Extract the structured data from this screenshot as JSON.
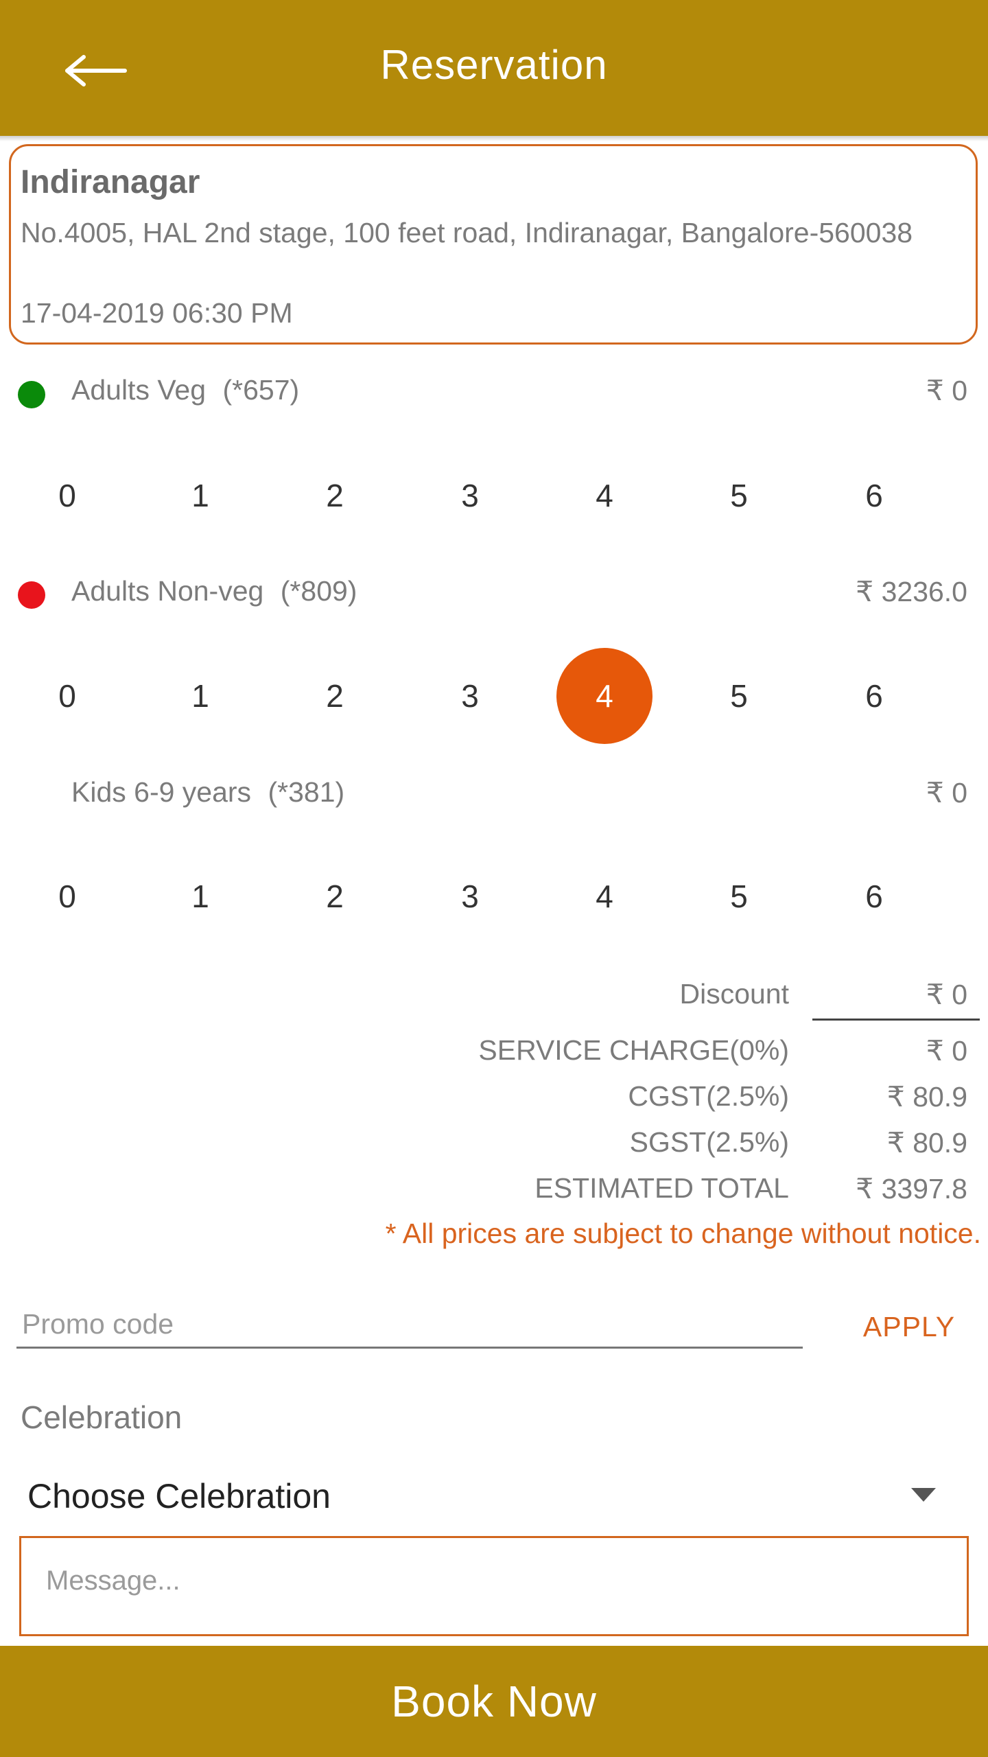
{
  "header": {
    "title": "Reservation",
    "back_icon": "arrow-left-icon"
  },
  "branch": {
    "name": "Indiranagar",
    "address": "No.4005, HAL 2nd stage, 100 feet road, Indiranagar, Bangalore-560038",
    "datetime": "17-04-2019 06:30 PM"
  },
  "groups": [
    {
      "label": "Adults Veg",
      "code": "(*657)",
      "price": "₹ 0",
      "dot_color": "#0a8a0a",
      "options": [
        "0",
        "1",
        "2",
        "3",
        "4",
        "5",
        "6"
      ],
      "selected": "0"
    },
    {
      "label": "Adults Non-veg",
      "code": "(*809)",
      "price": "₹ 3236.0",
      "dot_color": "#e8141c",
      "options": [
        "0",
        "1",
        "2",
        "3",
        "4",
        "5",
        "6"
      ],
      "selected": "4"
    },
    {
      "label": "Kids 6-9 years",
      "code": "(*381)",
      "price": "₹ 0",
      "options": [
        "0",
        "1",
        "2",
        "3",
        "4",
        "5",
        "6"
      ],
      "selected": "0"
    }
  ],
  "summary": {
    "discount_label": "Discount",
    "discount_value": "₹ 0",
    "service_label": "SERVICE CHARGE(0%)",
    "service_value": "₹ 0",
    "cgst_label": "CGST(2.5%)",
    "cgst_value": "₹ 80.9",
    "sgst_label": "SGST(2.5%)",
    "sgst_value": "₹ 80.9",
    "total_label": "ESTIMATED TOTAL",
    "total_value": "₹ 3397.8",
    "note": "* All prices are subject to change without notice."
  },
  "promo": {
    "placeholder": "Promo code",
    "apply_label": "APPLY"
  },
  "celebration": {
    "label": "Celebration",
    "selected": "Choose Celebration"
  },
  "message": {
    "placeholder": "Message..."
  },
  "footer": {
    "book_label": "Book Now"
  },
  "colors": {
    "brand": "#b38a0a",
    "accent": "#e6580a",
    "border": "#d2671e"
  }
}
